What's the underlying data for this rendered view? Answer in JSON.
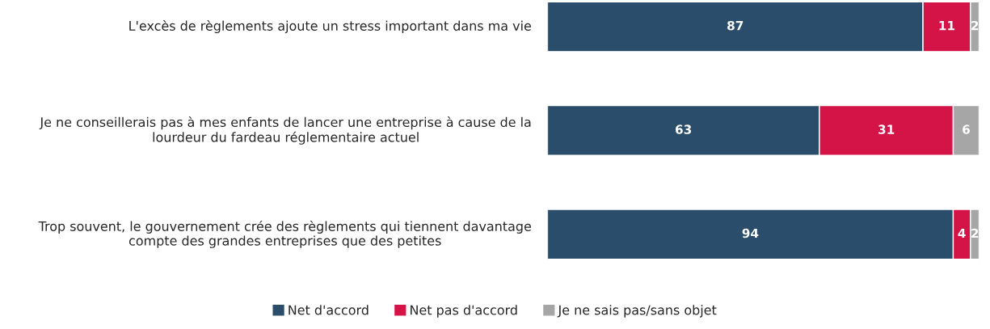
{
  "chart_data": {
    "type": "bar",
    "orientation": "horizontal",
    "stacked": true,
    "data_labels": true,
    "legend": "bottom",
    "categories": [
      "L'excès de règlements ajoute un stress important dans ma vie",
      "Je ne conseillerais pas à mes enfants de lancer une entreprise à cause de la lourdeur du fardeau réglementaire actuel",
      "Trop souvent, le gouvernement crée des règlements qui tiennent davantage compte des grandes entreprises que des petites"
    ],
    "series": [
      {
        "name": "Net d'accord",
        "color": "#2a4d6b",
        "values": [
          87,
          63,
          94
        ]
      },
      {
        "name": "Net pas d'accord",
        "color": "#d41347",
        "values": [
          11,
          31,
          4
        ]
      },
      {
        "name": "Je ne sais pas/sans objet",
        "color": "#a6a6a6",
        "values": [
          2,
          6,
          2
        ]
      }
    ]
  }
}
